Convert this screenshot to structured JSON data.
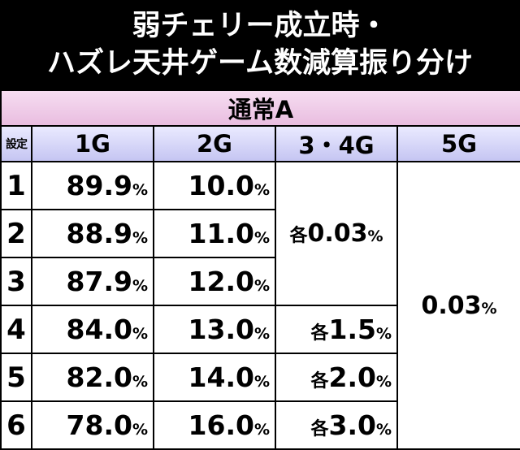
{
  "title": {
    "line1": "弱チェリー成立時・",
    "line2": "ハズレ天井ゲーム数減算振り分け"
  },
  "table": {
    "mode": "通常A",
    "headers": {
      "setting": "設定",
      "g1": "1G",
      "g2": "2G",
      "g34": "3・4G",
      "g5": "5G"
    },
    "percent": "%",
    "each_prefix": "各",
    "merged_34_rows_1_3": "0.03",
    "merged_5g": "0.03",
    "rows": [
      {
        "setting": "1",
        "g1": "89.9",
        "g2": "10.0"
      },
      {
        "setting": "2",
        "g1": "88.9",
        "g2": "11.0"
      },
      {
        "setting": "3",
        "g1": "87.9",
        "g2": "12.0"
      },
      {
        "setting": "4",
        "g1": "84.0",
        "g2": "13.0",
        "g34": "1.5"
      },
      {
        "setting": "5",
        "g1": "82.0",
        "g2": "14.0",
        "g34": "2.0"
      },
      {
        "setting": "6",
        "g1": "78.0",
        "g2": "16.0",
        "g34": "3.0"
      }
    ]
  }
}
